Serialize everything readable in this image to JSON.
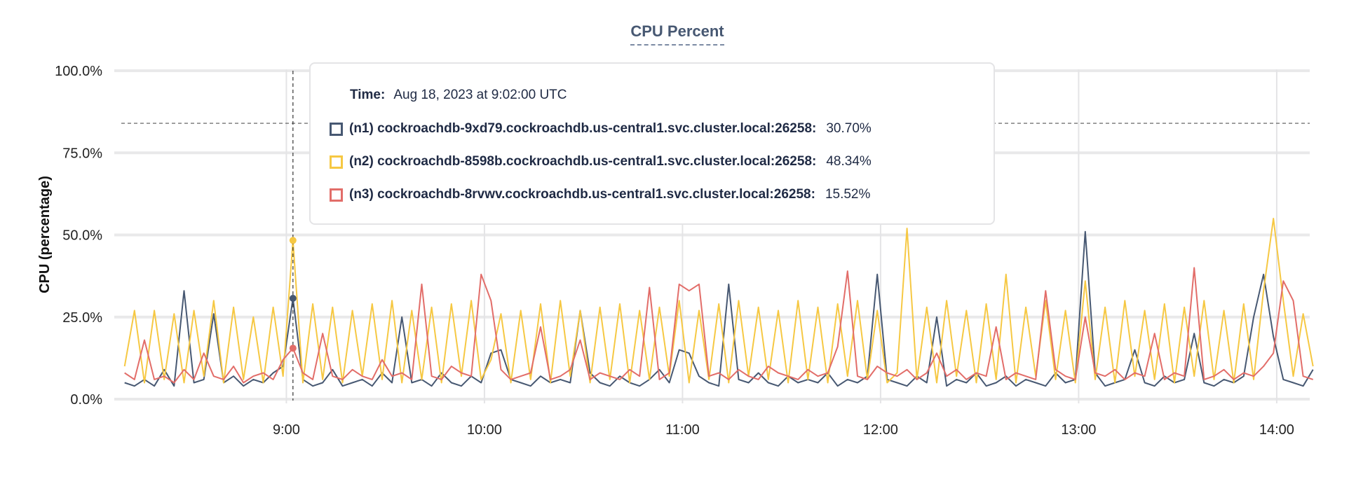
{
  "chart_data": {
    "type": "line",
    "title": "CPU Percent",
    "xlabel": "",
    "ylabel": "CPU (percentage)",
    "ylim": [
      0,
      100
    ],
    "xlim": [
      "08:10",
      "14:10"
    ],
    "y_ticks": [
      "0.0%",
      "25.0%",
      "50.0%",
      "75.0%",
      "100.0%"
    ],
    "x_ticks": [
      "9:00",
      "10:00",
      "11:00",
      "12:00",
      "13:00",
      "14:00"
    ],
    "grid": true,
    "threshold_line": 84,
    "hover_time": "09:02",
    "x": [
      "08:11",
      "08:14",
      "08:17",
      "08:20",
      "08:23",
      "08:26",
      "08:29",
      "08:32",
      "08:35",
      "08:38",
      "08:41",
      "08:44",
      "08:47",
      "08:50",
      "08:53",
      "08:56",
      "08:59",
      "09:02",
      "09:05",
      "09:08",
      "09:11",
      "09:14",
      "09:17",
      "09:20",
      "09:23",
      "09:26",
      "09:29",
      "09:32",
      "09:35",
      "09:38",
      "09:41",
      "09:44",
      "09:47",
      "09:50",
      "09:53",
      "09:56",
      "09:59",
      "10:02",
      "10:05",
      "10:08",
      "10:11",
      "10:14",
      "10:17",
      "10:20",
      "10:23",
      "10:26",
      "10:29",
      "10:32",
      "10:35",
      "10:38",
      "10:41",
      "10:44",
      "10:47",
      "10:50",
      "10:53",
      "10:56",
      "10:59",
      "11:02",
      "11:05",
      "11:08",
      "11:11",
      "11:14",
      "11:17",
      "11:20",
      "11:23",
      "11:26",
      "11:29",
      "11:32",
      "11:35",
      "11:38",
      "11:41",
      "11:44",
      "11:47",
      "11:50",
      "11:53",
      "11:56",
      "11:59",
      "12:02",
      "12:05",
      "12:08",
      "12:11",
      "12:14",
      "12:17",
      "12:20",
      "12:23",
      "12:26",
      "12:29",
      "12:32",
      "12:35",
      "12:38",
      "12:41",
      "12:44",
      "12:47",
      "12:50",
      "12:53",
      "12:56",
      "12:59",
      "13:02",
      "13:05",
      "13:08",
      "13:11",
      "13:14",
      "13:17",
      "13:20",
      "13:23",
      "13:26",
      "13:29",
      "13:32",
      "13:35",
      "13:38",
      "13:41",
      "13:44",
      "13:47",
      "13:50",
      "13:53",
      "13:56",
      "13:59",
      "14:02",
      "14:05",
      "14:08",
      "14:11"
    ],
    "series": [
      {
        "name": "(n1) cockroachdb-9xd79.cockroachdb.us-central1.svc.cluster.local:26258",
        "color": "#475872",
        "values": [
          5,
          4,
          6,
          4,
          9,
          4,
          33,
          5,
          6,
          26,
          5,
          7,
          4,
          6,
          5,
          8,
          10,
          30.7,
          6,
          4,
          5,
          9,
          4,
          5,
          6,
          4,
          8,
          5,
          25,
          5,
          6,
          4,
          8,
          5,
          4,
          7,
          5,
          14,
          15,
          6,
          5,
          4,
          7,
          5,
          6,
          5,
          27,
          8,
          5,
          4,
          7,
          5,
          4,
          6,
          9,
          5,
          15,
          14,
          7,
          5,
          4,
          35,
          6,
          5,
          8,
          5,
          4,
          7,
          5,
          6,
          5,
          8,
          4,
          6,
          5,
          7,
          38,
          6,
          5,
          4,
          7,
          5,
          25,
          4,
          6,
          5,
          8,
          4,
          5,
          7,
          4,
          6,
          5,
          4,
          8,
          5,
          6,
          51,
          8,
          4,
          5,
          6,
          15,
          5,
          4,
          7,
          5,
          6,
          20,
          5,
          4,
          6,
          5,
          7,
          25,
          38,
          19,
          6,
          5,
          4,
          9
        ]
      },
      {
        "name": "(n2) cockroachdb-8598b.cockroachdb.us-central1.svc.cluster.local:26258",
        "color": "#f6c843",
        "values": [
          10,
          27,
          5,
          27,
          6,
          26,
          5,
          27,
          7,
          30,
          5,
          28,
          6,
          25,
          5,
          28,
          7,
          48.34,
          5,
          29,
          6,
          28,
          5,
          27,
          7,
          29,
          6,
          30,
          5,
          27,
          6,
          28,
          5,
          29,
          7,
          30,
          6,
          12,
          26,
          5,
          27,
          6,
          29,
          5,
          30,
          7,
          27,
          5,
          28,
          6,
          29,
          5,
          27,
          6,
          28,
          7,
          30,
          5,
          27,
          6,
          29,
          5,
          30,
          7,
          28,
          6,
          27,
          5,
          30,
          6,
          28,
          5,
          29,
          7,
          30,
          6,
          27,
          5,
          8,
          52,
          6,
          28,
          5,
          30,
          7,
          27,
          5,
          29,
          6,
          38,
          5,
          28,
          7,
          30,
          6,
          27,
          5,
          36,
          6,
          28,
          5,
          30,
          7,
          27,
          6,
          29,
          5,
          28,
          7,
          30,
          6,
          27,
          5,
          29,
          6,
          33,
          55,
          30,
          7,
          26,
          10
        ]
      },
      {
        "name": "(n3) cockroachdb-8rvwv.cockroachdb.us-central1.svc.cluster.local:26258",
        "color": "#e26d69",
        "values": [
          8,
          6,
          18,
          6,
          7,
          5,
          9,
          6,
          14,
          7,
          6,
          10,
          5,
          7,
          8,
          6,
          12,
          15.52,
          8,
          6,
          20,
          7,
          6,
          9,
          7,
          6,
          12,
          7,
          8,
          6,
          35,
          7,
          6,
          10,
          8,
          7,
          38,
          30,
          9,
          6,
          7,
          8,
          22,
          6,
          7,
          9,
          18,
          6,
          8,
          7,
          6,
          9,
          7,
          34,
          6,
          8,
          35,
          33,
          35,
          7,
          8,
          6,
          9,
          7,
          6,
          10,
          8,
          7,
          6,
          9,
          7,
          8,
          16,
          39,
          7,
          6,
          10,
          8,
          7,
          9,
          6,
          8,
          14,
          7,
          9,
          6,
          8,
          7,
          22,
          6,
          8,
          7,
          6,
          33,
          9,
          7,
          6,
          25,
          8,
          7,
          9,
          6,
          8,
          7,
          20,
          6,
          8,
          7,
          40,
          6,
          7,
          9,
          6,
          8,
          7,
          10,
          14,
          36,
          30,
          7,
          6
        ]
      }
    ]
  },
  "tooltip": {
    "time_label": "Time:",
    "time_value": "Aug 18, 2023 at 9:02:00 UTC",
    "rows": [
      {
        "label": "(n1) cockroachdb-9xd79.cockroachdb.us-central1.svc.cluster.local:26258:",
        "value": "30.70%"
      },
      {
        "label": "(n2) cockroachdb-8598b.cockroachdb.us-central1.svc.cluster.local:26258:",
        "value": "48.34%"
      },
      {
        "label": "(n3) cockroachdb-8rvwv.cockroachdb.us-central1.svc.cluster.local:26258:",
        "value": "15.52%"
      }
    ]
  }
}
